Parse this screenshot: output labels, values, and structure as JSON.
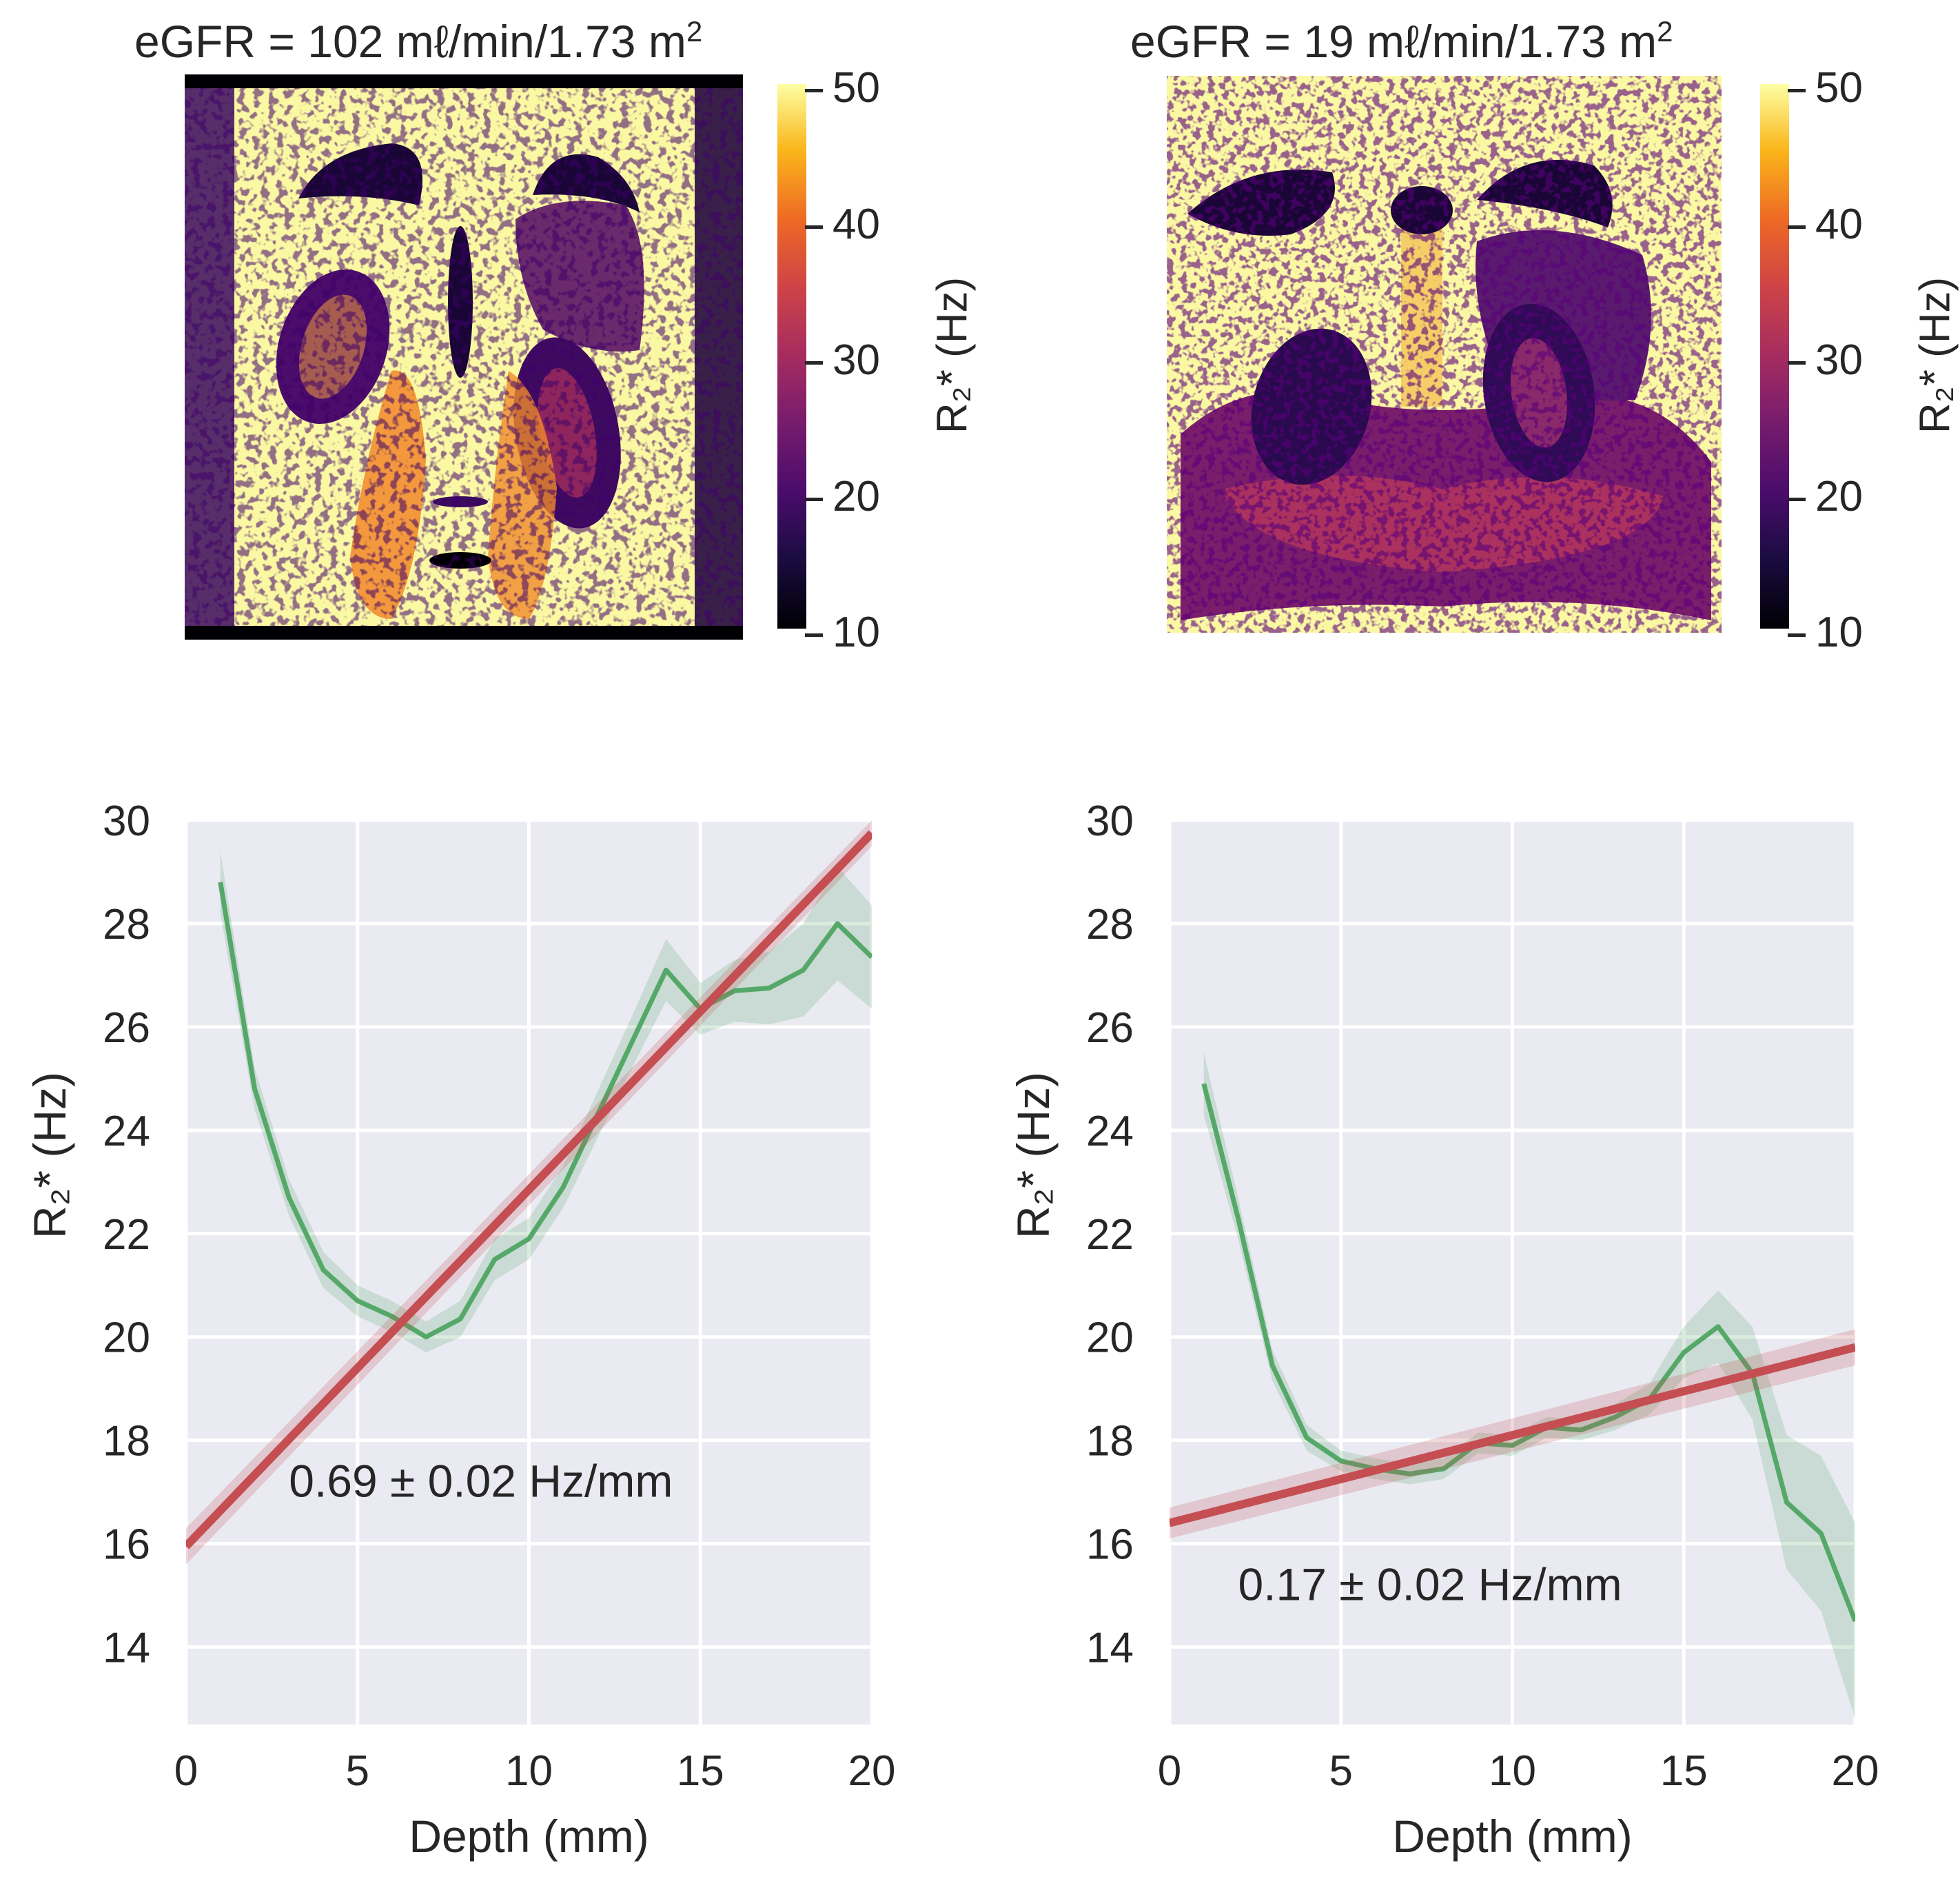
{
  "colorbar": {
    "ticks": [
      "10",
      "20",
      "30",
      "40",
      "50"
    ],
    "label": "R₂* (Hz)"
  },
  "maps": [
    {
      "title_text": "eGFR = 102 mℓ/min/1.73 m",
      "title_sup": "2"
    },
    {
      "title_text": "eGFR = 19 mℓ/min/1.73 m",
      "title_sup": "2"
    }
  ],
  "chart_data": [
    {
      "type": "line",
      "xlabel": "Depth (mm)",
      "ylabel": "R₂* (Hz)",
      "xlim": [
        0,
        20
      ],
      "ylim": [
        12.5,
        30
      ],
      "xticks": [
        0,
        5,
        10,
        15,
        20
      ],
      "yticks": [
        14,
        16,
        18,
        20,
        22,
        24,
        26,
        28,
        30
      ],
      "grid": true,
      "background": "#eaeaf2",
      "annotation": "0.69 ± 0.02 Hz/mm",
      "series": [
        {
          "color": "#55a868",
          "x": [
            1,
            2,
            3,
            4,
            5,
            6,
            7,
            8,
            9,
            10,
            11,
            12,
            13,
            14,
            15,
            16,
            17,
            18,
            19,
            20
          ],
          "y": [
            28.8,
            24.8,
            22.7,
            21.3,
            20.7,
            20.4,
            20.0,
            20.35,
            21.5,
            21.9,
            22.9,
            24.3,
            25.7,
            27.1,
            26.35,
            26.7,
            26.75,
            27.1,
            28.0,
            27.35
          ],
          "ci": [
            0.6,
            0.4,
            0.35,
            0.35,
            0.3,
            0.3,
            0.3,
            0.35,
            0.4,
            0.4,
            0.4,
            0.45,
            0.5,
            0.6,
            0.5,
            0.6,
            0.7,
            0.9,
            1.1,
            1.0
          ]
        },
        {
          "color": "#c44e52",
          "x": [
            0,
            20
          ],
          "y": [
            15.95,
            29.75
          ],
          "ci": [
            0.35,
            0.25
          ]
        }
      ]
    },
    {
      "type": "line",
      "xlabel": "Depth (mm)",
      "ylabel": "R₂* (Hz)",
      "xlim": [
        0,
        20
      ],
      "ylim": [
        12.5,
        30
      ],
      "xticks": [
        0,
        5,
        10,
        15,
        20
      ],
      "yticks": [
        14,
        16,
        18,
        20,
        22,
        24,
        26,
        28,
        30
      ],
      "grid": true,
      "background": "#eaeaf2",
      "annotation": "0.17 ± 0.02 Hz/mm",
      "series": [
        {
          "color": "#55a868",
          "x": [
            1,
            2,
            3,
            4,
            5,
            6,
            7,
            8,
            9,
            10,
            11,
            12,
            13,
            14,
            15,
            16,
            17,
            18,
            19,
            20
          ],
          "y": [
            24.9,
            22.3,
            19.45,
            18.05,
            17.6,
            17.45,
            17.35,
            17.45,
            17.95,
            17.9,
            18.25,
            18.2,
            18.45,
            18.8,
            19.7,
            20.2,
            19.3,
            16.8,
            16.2,
            14.5
          ],
          "ci": [
            0.6,
            0.4,
            0.3,
            0.25,
            0.2,
            0.2,
            0.2,
            0.2,
            0.2,
            0.2,
            0.2,
            0.2,
            0.25,
            0.3,
            0.5,
            0.7,
            0.9,
            1.3,
            1.5,
            1.9
          ]
        },
        {
          "color": "#c44e52",
          "x": [
            0,
            20
          ],
          "y": [
            16.4,
            19.8
          ],
          "ci": [
            0.3,
            0.35
          ]
        }
      ]
    }
  ]
}
